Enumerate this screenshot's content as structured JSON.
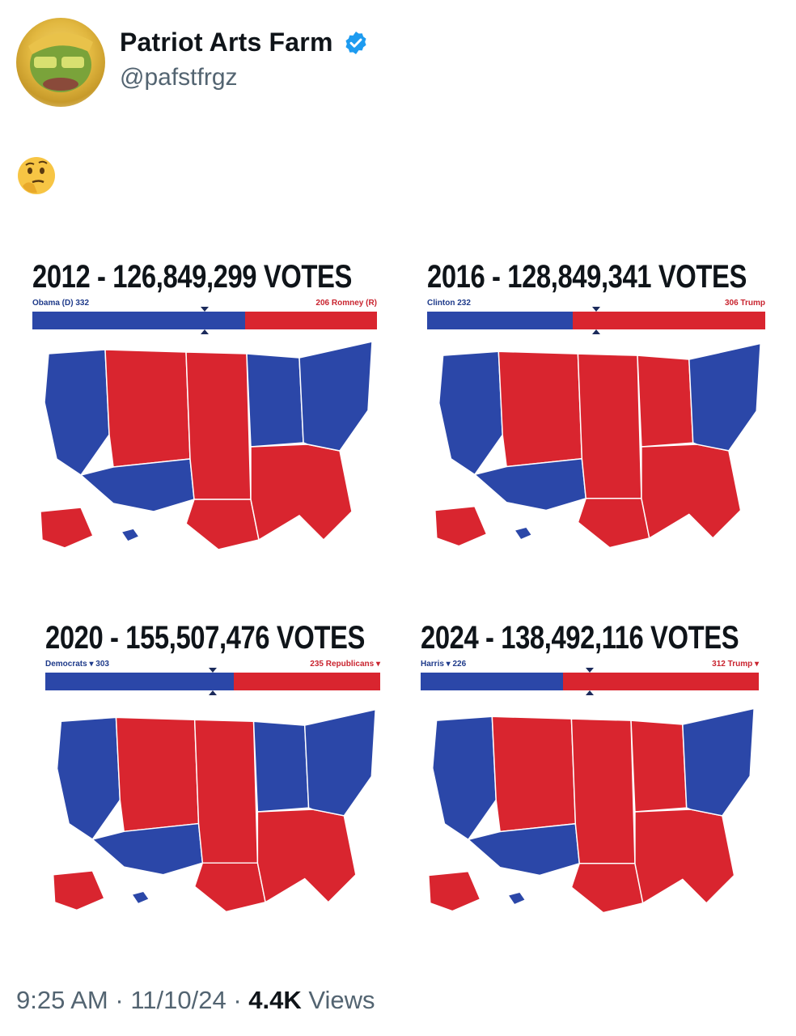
{
  "post": {
    "display_name": "Patriot Arts Farm",
    "handle": "@pafstfrgz",
    "emoji": "🤔",
    "verified_icon": "verified-badge-icon",
    "footer": {
      "time": "9:25 AM",
      "date": "11/10/24",
      "separator": "·",
      "views_count": "4.4K",
      "views_label": "Views"
    }
  },
  "colors": {
    "dem": "#2b47a8",
    "rep": "#d9252f",
    "verified": "#1d9bf0"
  },
  "panels": [
    {
      "title": "2012 - 126,849,299 VOTES",
      "left_label": "Obama (D)  332",
      "right_label": "206  Romney (R)",
      "dem_ev": 332,
      "rep_ev": 206
    },
    {
      "title": "2016 - 128,849,341 VOTES",
      "left_label": "Clinton  232",
      "right_label": "306  Trump",
      "dem_ev": 232,
      "rep_ev": 306
    },
    {
      "title": "2020 - 155,507,476 VOTES",
      "left_label": "Democrats ▾  303",
      "right_label": "235  Republicans ▾",
      "dem_ev": 303,
      "rep_ev": 235
    },
    {
      "title": "2024 - 138,492,116 VOTES",
      "left_label": "Harris ▾  226",
      "right_label": "312  Trump ▾",
      "dem_ev": 226,
      "rep_ev": 312
    }
  ]
}
